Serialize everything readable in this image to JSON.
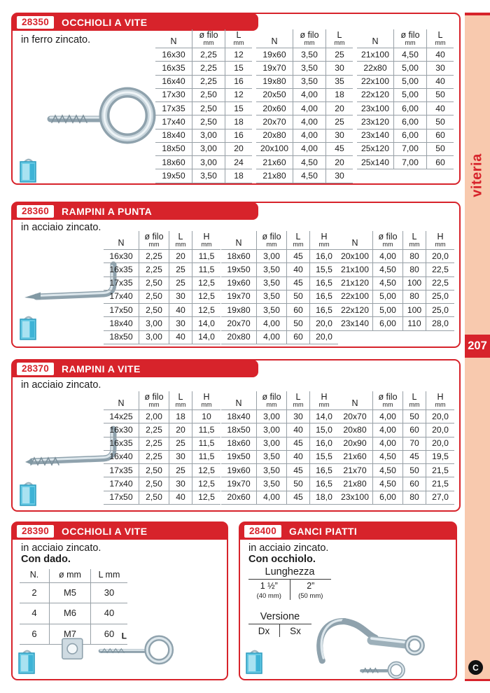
{
  "sidebar": {
    "label": "viteria",
    "page_number": "207",
    "logo": "C"
  },
  "colors": {
    "red": "#d7232b",
    "salmon": "#f8c9ae",
    "table_line": "#97a0a6",
    "steel": "#8fa2ad",
    "steel_light": "#dde7ec",
    "package_blue": "#66c9e4"
  },
  "sections": [
    {
      "code": "28350",
      "title": "OCCHIOLI A VITE",
      "desc": "in ferro zincato.",
      "table_headers": [
        [
          "N",
          ""
        ],
        [
          "ø filo",
          "mm"
        ],
        [
          "L",
          "mm"
        ]
      ],
      "groups": [
        [
          [
            "16x30",
            "2,25",
            "12"
          ],
          [
            "16x35",
            "2,25",
            "15"
          ],
          [
            "16x40",
            "2,25",
            "16"
          ],
          [
            "17x30",
            "2,50",
            "12"
          ],
          [
            "17x35",
            "2,50",
            "15"
          ],
          [
            "17x40",
            "2,50",
            "18"
          ],
          [
            "18x40",
            "3,00",
            "16"
          ],
          [
            "18x50",
            "3,00",
            "20"
          ],
          [
            "18x60",
            "3,00",
            "24"
          ],
          [
            "19x50",
            "3,50",
            "18"
          ]
        ],
        [
          [
            "19x60",
            "3,50",
            "25"
          ],
          [
            "19x70",
            "3,50",
            "30"
          ],
          [
            "19x80",
            "3,50",
            "35"
          ],
          [
            "20x50",
            "4,00",
            "18"
          ],
          [
            "20x60",
            "4,00",
            "20"
          ],
          [
            "20x70",
            "4,00",
            "25"
          ],
          [
            "20x80",
            "4,00",
            "30"
          ],
          [
            "20x100",
            "4,00",
            "45"
          ],
          [
            "21x60",
            "4,50",
            "20"
          ],
          [
            "21x80",
            "4,50",
            "30"
          ]
        ],
        [
          [
            "21x100",
            "4,50",
            "40"
          ],
          [
            "22x80",
            "5,00",
            "30"
          ],
          [
            "22x100",
            "5,00",
            "40"
          ],
          [
            "22x120",
            "5,00",
            "50"
          ],
          [
            "23x100",
            "6,00",
            "40"
          ],
          [
            "23x120",
            "6,00",
            "50"
          ],
          [
            "23x140",
            "6,00",
            "60"
          ],
          [
            "25x120",
            "7,00",
            "50"
          ],
          [
            "25x140",
            "7,00",
            "60"
          ]
        ]
      ]
    },
    {
      "code": "28360",
      "title": "RAMPINI A PUNTA",
      "desc": "in acciaio zincato.",
      "table_headers": [
        [
          "N",
          ""
        ],
        [
          "ø filo",
          "mm"
        ],
        [
          "L",
          "mm"
        ],
        [
          "H",
          "mm"
        ]
      ],
      "groups": [
        [
          [
            "16x30",
            "2,25",
            "20",
            "11,5"
          ],
          [
            "16x35",
            "2,25",
            "25",
            "11,5"
          ],
          [
            "17x35",
            "2,50",
            "25",
            "12,5"
          ],
          [
            "17x40",
            "2,50",
            "30",
            "12,5"
          ],
          [
            "17x50",
            "2,50",
            "40",
            "12,5"
          ],
          [
            "18x40",
            "3,00",
            "30",
            "14,0"
          ],
          [
            "18x50",
            "3,00",
            "40",
            "14,0"
          ]
        ],
        [
          [
            "18x60",
            "3,00",
            "45",
            "16,0"
          ],
          [
            "19x50",
            "3,50",
            "40",
            "15,5"
          ],
          [
            "19x60",
            "3,50",
            "45",
            "16,5"
          ],
          [
            "19x70",
            "3,50",
            "50",
            "16,5"
          ],
          [
            "19x80",
            "3,50",
            "60",
            "16,5"
          ],
          [
            "20x70",
            "4,00",
            "50",
            "20,0"
          ],
          [
            "20x80",
            "4,00",
            "60",
            "20,0"
          ]
        ],
        [
          [
            "20x100",
            "4,00",
            "80",
            "20,0"
          ],
          [
            "21x100",
            "4,50",
            "80",
            "22,5"
          ],
          [
            "21x120",
            "4,50",
            "100",
            "22,5"
          ],
          [
            "22x100",
            "5,00",
            "80",
            "25,0"
          ],
          [
            "22x120",
            "5,00",
            "100",
            "25,0"
          ],
          [
            "23x140",
            "6,00",
            "110",
            "28,0"
          ]
        ]
      ]
    },
    {
      "code": "28370",
      "title": "RAMPINI A VITE",
      "desc": "in acciaio zincato.",
      "table_headers": [
        [
          "N",
          ""
        ],
        [
          "ø filo",
          "mm"
        ],
        [
          "L",
          "mm"
        ],
        [
          "H",
          "mm"
        ]
      ],
      "groups": [
        [
          [
            "14x25",
            "2,00",
            "18",
            "10"
          ],
          [
            "16x30",
            "2,25",
            "20",
            "11,5"
          ],
          [
            "16x35",
            "2,25",
            "25",
            "11,5"
          ],
          [
            "16x40",
            "2,25",
            "30",
            "11,5"
          ],
          [
            "17x35",
            "2,50",
            "25",
            "12,5"
          ],
          [
            "17x40",
            "2,50",
            "30",
            "12,5"
          ],
          [
            "17x50",
            "2,50",
            "40",
            "12,5"
          ]
        ],
        [
          [
            "18x40",
            "3,00",
            "30",
            "14,0"
          ],
          [
            "18x50",
            "3,00",
            "40",
            "15,0"
          ],
          [
            "18x60",
            "3,00",
            "45",
            "16,0"
          ],
          [
            "19x50",
            "3,50",
            "40",
            "15,5"
          ],
          [
            "19x60",
            "3,50",
            "45",
            "16,5"
          ],
          [
            "19x70",
            "3,50",
            "50",
            "16,5"
          ],
          [
            "20x60",
            "4,00",
            "45",
            "18,0"
          ]
        ],
        [
          [
            "20x70",
            "4,00",
            "50",
            "20,0"
          ],
          [
            "20x80",
            "4,00",
            "60",
            "20,0"
          ],
          [
            "20x90",
            "4,00",
            "70",
            "20,0"
          ],
          [
            "21x60",
            "4,50",
            "45",
            "19,5"
          ],
          [
            "21x70",
            "4,50",
            "50",
            "21,5"
          ],
          [
            "21x80",
            "4,50",
            "60",
            "21,5"
          ],
          [
            "23x100",
            "6,00",
            "80",
            "27,0"
          ]
        ]
      ]
    },
    {
      "code": "28390",
      "title": "OCCHIOLI A VITE",
      "desc": "in acciaio zincato.",
      "note": "Con dado.",
      "table_headers": [
        [
          "N."
        ],
        [
          "ø mm"
        ],
        [
          "L mm"
        ]
      ],
      "rows": [
        [
          "2",
          "M5",
          "30"
        ],
        [
          "4",
          "M6",
          "40"
        ],
        [
          "6",
          "M7",
          "60"
        ]
      ],
      "dim_label": "L"
    },
    {
      "code": "28400",
      "title": "GANCI PIATTI",
      "desc": "in acciaio zincato.",
      "note": "Con occhiolo.",
      "lunghezza": {
        "title": "Lunghezza",
        "options": [
          {
            "inch": "1 ½”",
            "mm": "(40 mm)"
          },
          {
            "inch": "2”",
            "mm": "(50 mm)"
          }
        ]
      },
      "versione": {
        "title": "Versione",
        "options": [
          "Dx",
          "Sx"
        ]
      }
    }
  ]
}
